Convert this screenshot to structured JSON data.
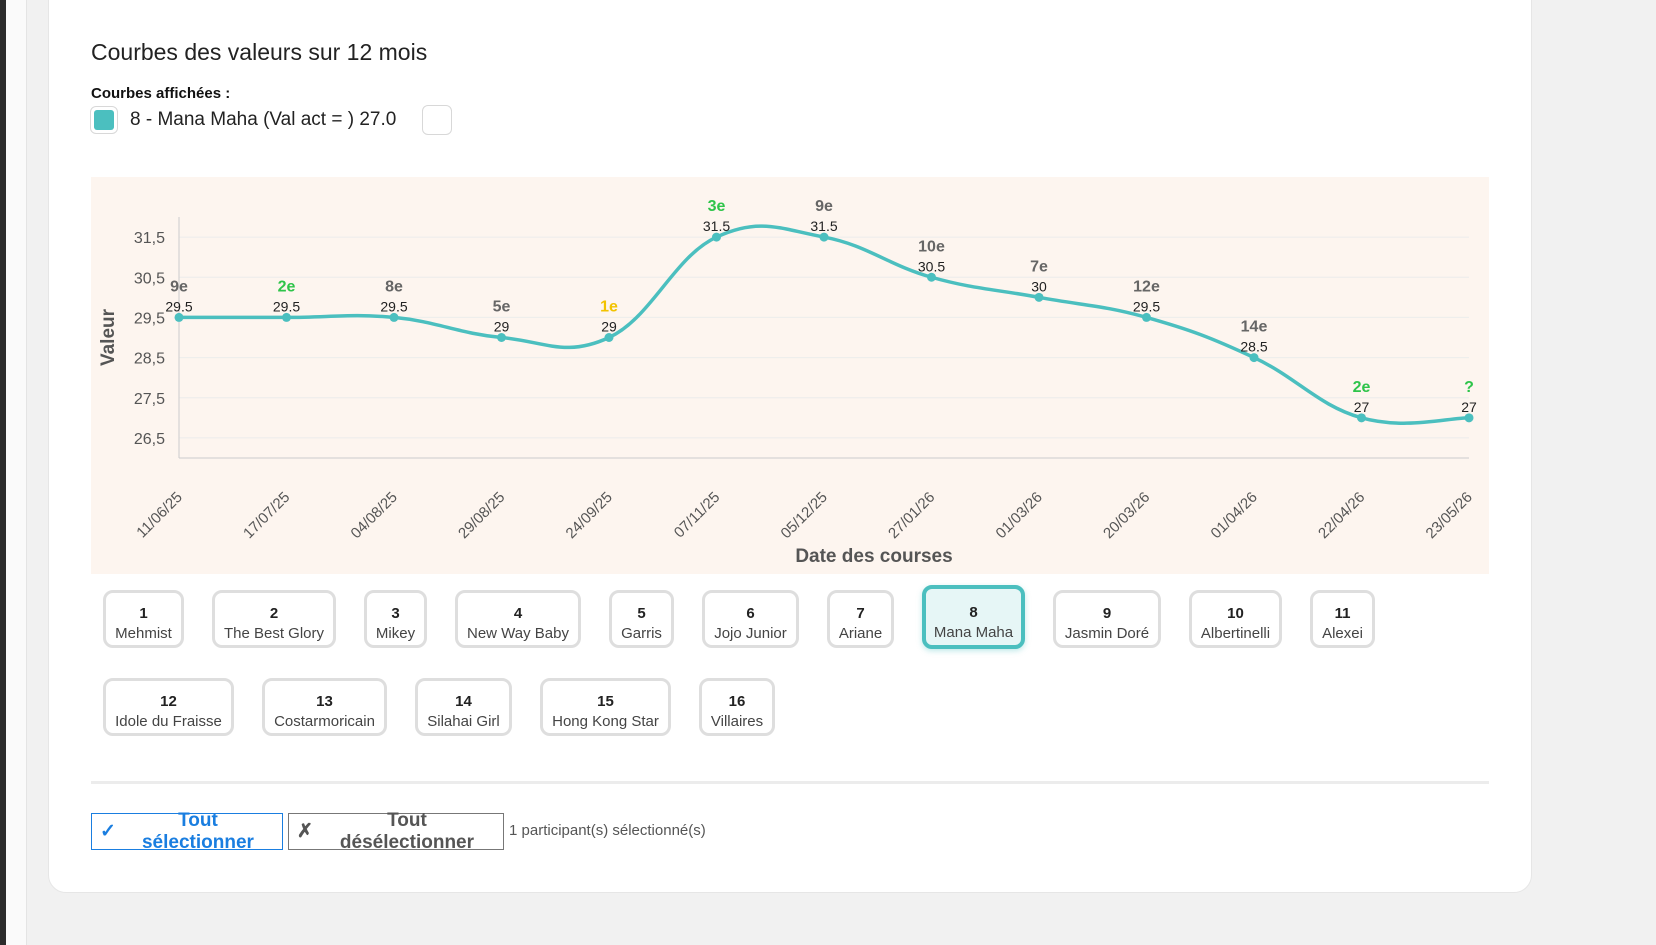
{
  "title": "Courbes des valeurs sur 12 mois",
  "shown_label": "Courbes affichées :",
  "legend": {
    "entry_text": "8 - Mana Maha (Val act = ) 27.0",
    "color": "#4bbfbf"
  },
  "colors": {
    "line": "#4bbfbf",
    "chart_bg": "#fdf5ef",
    "rank_default": "#666666",
    "rank_green": "#2ec44a",
    "rank_gold": "#f2c300"
  },
  "chart_data": {
    "type": "line",
    "xlabel": "Date des courses",
    "ylabel": "Valeur",
    "x": [
      "11/06/25",
      "17/07/25",
      "04/08/25",
      "29/08/25",
      "24/09/25",
      "07/11/25",
      "05/12/25",
      "27/01/26",
      "01/03/26",
      "20/03/26",
      "01/04/26",
      "22/04/26",
      "23/05/26"
    ],
    "yticks": [
      "31,5",
      "30,5",
      "29,5",
      "28,5",
      "27,5",
      "26,5"
    ],
    "ylim": [
      26.0,
      32.0
    ],
    "grid": true,
    "series": [
      {
        "values": [
          29.5,
          29.5,
          29.5,
          29,
          29,
          31.5,
          31.5,
          30.5,
          30,
          29.5,
          28.5,
          27,
          27
        ],
        "point_labels": [
          "29.5",
          "29.5",
          "29.5",
          "29",
          "29",
          "31.5",
          "31.5",
          "30.5",
          "30",
          "29.5",
          "28.5",
          "27",
          "27"
        ],
        "ranks": [
          "9e",
          "2e",
          "8e",
          "5e",
          "1e",
          "3e",
          "9e",
          "10e",
          "7e",
          "12e",
          "14e",
          "2e",
          "?"
        ],
        "rank_colors": [
          "default",
          "green",
          "default",
          "default",
          "gold",
          "green",
          "default",
          "default",
          "default",
          "default",
          "default",
          "green",
          "green"
        ]
      }
    ]
  },
  "participants": [
    {
      "num": "1",
      "name": "Mehmist"
    },
    {
      "num": "2",
      "name": "The Best Glory"
    },
    {
      "num": "3",
      "name": "Mikey"
    },
    {
      "num": "4",
      "name": "New Way Baby"
    },
    {
      "num": "5",
      "name": "Garris"
    },
    {
      "num": "6",
      "name": "Jojo Junior"
    },
    {
      "num": "7",
      "name": "Ariane"
    },
    {
      "num": "8",
      "name": "Mana Maha",
      "selected": true
    },
    {
      "num": "9",
      "name": "Jasmin Doré"
    },
    {
      "num": "10",
      "name": "Albertinelli"
    },
    {
      "num": "11",
      "name": "Alexei"
    },
    {
      "num": "12",
      "name": "Idole du Fraisse"
    },
    {
      "num": "13",
      "name": "Costarmoricain"
    },
    {
      "num": "14",
      "name": "Silahai Girl"
    },
    {
      "num": "15",
      "name": "Hong Kong Star"
    },
    {
      "num": "16",
      "name": "Villaires"
    }
  ],
  "actions": {
    "select_all_icon": "✓",
    "select_all_label": "Tout sélectionner",
    "deselect_all_icon": "✗",
    "deselect_all_label": "Tout désélectionner",
    "selected_count_text": "1 participant(s) sélectionné(s)"
  }
}
